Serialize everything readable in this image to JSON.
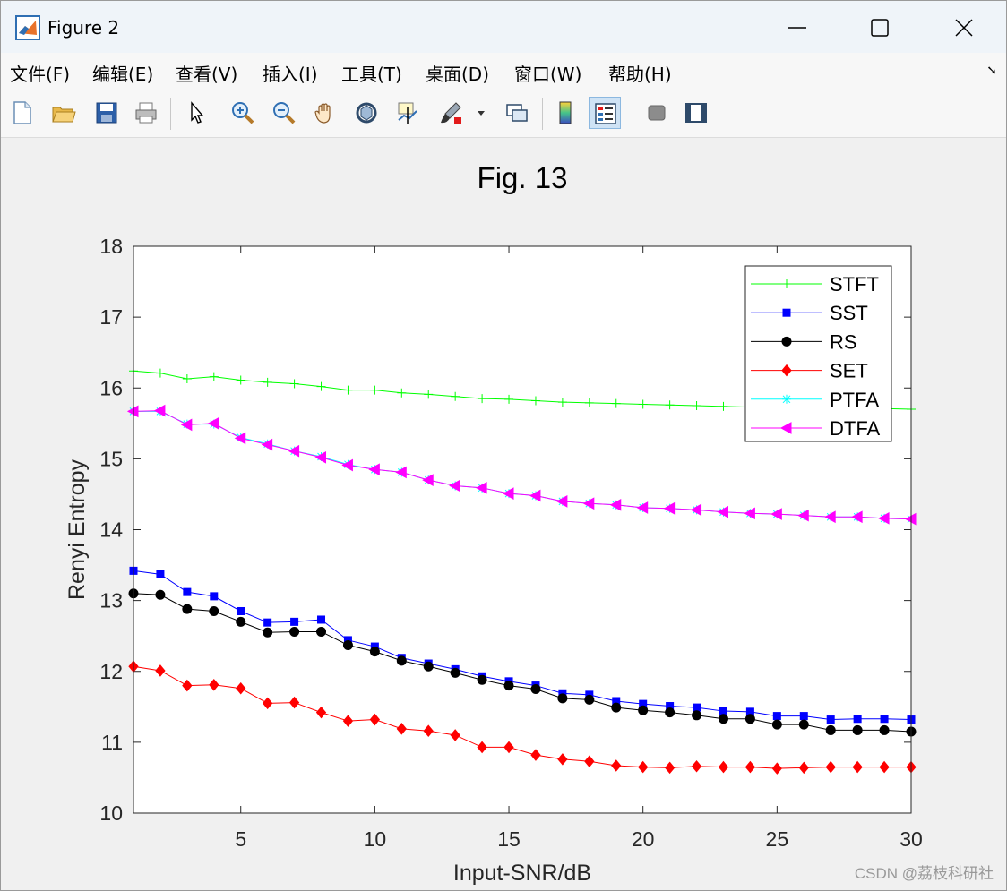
{
  "window": {
    "title": "Figure 2"
  },
  "menu": {
    "items": [
      "文件(F)",
      "编辑(E)",
      "查看(V)",
      "插入(I)",
      "工具(T)",
      "桌面(D)",
      "窗口(W)",
      "帮助(H)"
    ]
  },
  "toolbar": {
    "icons": [
      "new-figure-icon",
      "open-file-icon",
      "save-icon",
      "print-icon",
      "select-arrow-icon",
      "zoom-in-icon",
      "zoom-out-icon",
      "pan-hand-icon",
      "rotate-3d-icon",
      "data-cursor-icon",
      "brush-icon",
      "brush-dropdown-icon",
      "link-plot-icon",
      "colorbar-icon",
      "legend-icon",
      "hide-plot-tools-icon",
      "show-plot-tools-icon"
    ]
  },
  "colors": {
    "STFT": "#00ff00",
    "SST": "#0000ff",
    "RS": "#000000",
    "SET": "#ff0000",
    "PTFA": "#00ffff",
    "DTFA": "#ff00ff"
  },
  "watermark": "CSDN @荔枝科研社",
  "chart_data": {
    "type": "line",
    "title": "Fig. 13",
    "xlabel": "Input-SNR/dB",
    "ylabel": "Renyi Entropy",
    "xlim": [
      1,
      30
    ],
    "ylim": [
      10,
      18
    ],
    "xticks": [
      5,
      10,
      15,
      20,
      25,
      30
    ],
    "yticks": [
      10,
      11,
      12,
      13,
      14,
      15,
      16,
      17,
      18
    ],
    "legend_position": "top-right",
    "x": [
      1,
      2,
      3,
      4,
      5,
      6,
      7,
      8,
      9,
      10,
      11,
      12,
      13,
      14,
      15,
      16,
      17,
      18,
      19,
      20,
      21,
      22,
      23,
      24,
      25,
      26,
      27,
      28,
      29,
      30
    ],
    "series": [
      {
        "name": "STFT",
        "marker": "plus",
        "values": [
          16.24,
          16.21,
          16.13,
          16.16,
          16.11,
          16.08,
          16.06,
          16.02,
          15.97,
          15.97,
          15.93,
          15.91,
          15.88,
          15.85,
          15.84,
          15.82,
          15.8,
          15.79,
          15.78,
          15.77,
          15.76,
          15.75,
          15.74,
          15.73,
          15.73,
          15.72,
          15.72,
          15.71,
          15.71,
          15.7
        ]
      },
      {
        "name": "SST",
        "marker": "square",
        "values": [
          13.42,
          13.37,
          13.12,
          13.06,
          12.85,
          12.69,
          12.7,
          12.73,
          12.44,
          12.35,
          12.19,
          12.11,
          12.03,
          11.93,
          11.86,
          11.8,
          11.69,
          11.67,
          11.58,
          11.54,
          11.51,
          11.49,
          11.44,
          11.43,
          11.37,
          11.37,
          11.32,
          11.33,
          11.33,
          11.32
        ]
      },
      {
        "name": "RS",
        "marker": "circle",
        "values": [
          13.1,
          13.08,
          12.88,
          12.85,
          12.7,
          12.55,
          12.56,
          12.56,
          12.37,
          12.28,
          12.15,
          12.07,
          11.98,
          11.88,
          11.8,
          11.75,
          11.62,
          11.6,
          11.49,
          11.45,
          11.42,
          11.38,
          11.33,
          11.33,
          11.25,
          11.25,
          11.17,
          11.17,
          11.17,
          11.15
        ]
      },
      {
        "name": "SET",
        "marker": "diamond",
        "values": [
          12.07,
          12.01,
          11.8,
          11.81,
          11.76,
          11.55,
          11.56,
          11.42,
          11.3,
          11.32,
          11.19,
          11.16,
          11.1,
          10.93,
          10.93,
          10.82,
          10.76,
          10.73,
          10.67,
          10.65,
          10.64,
          10.66,
          10.65,
          10.65,
          10.63,
          10.64,
          10.65,
          10.65,
          10.65,
          10.65
        ]
      },
      {
        "name": "PTFA",
        "marker": "asterisk",
        "values": [
          15.67,
          15.67,
          15.49,
          15.49,
          15.3,
          15.21,
          15.11,
          15.03,
          14.92,
          14.85,
          14.81,
          14.7,
          14.62,
          14.59,
          14.51,
          14.48,
          14.4,
          14.37,
          14.35,
          14.31,
          14.3,
          14.28,
          14.25,
          14.23,
          14.22,
          14.2,
          14.18,
          14.18,
          14.16,
          14.15
        ]
      },
      {
        "name": "DTFA",
        "marker": "triangle-left",
        "values": [
          15.67,
          15.68,
          15.48,
          15.5,
          15.29,
          15.2,
          15.11,
          15.02,
          14.91,
          14.85,
          14.81,
          14.7,
          14.62,
          14.59,
          14.51,
          14.48,
          14.4,
          14.37,
          14.35,
          14.31,
          14.3,
          14.28,
          14.25,
          14.23,
          14.22,
          14.2,
          14.18,
          14.18,
          14.16,
          14.15
        ]
      }
    ]
  }
}
